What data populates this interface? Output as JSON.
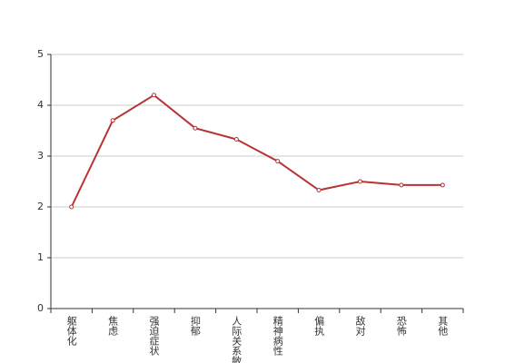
{
  "chart_data": {
    "type": "line",
    "categories": [
      "躯体化",
      "焦虑",
      "强迫症状",
      "抑郁",
      "人际关系敏感",
      "精神病性",
      "偏执",
      "敌对",
      "恐怖",
      "其他"
    ],
    "values": [
      2.0,
      3.7,
      4.2,
      3.55,
      3.33,
      2.9,
      2.33,
      2.5,
      2.43,
      2.43
    ],
    "color": "#b83232",
    "ylim": [
      0,
      5
    ],
    "yticks": [
      0,
      1,
      2,
      3,
      4,
      5
    ],
    "grid": true
  }
}
